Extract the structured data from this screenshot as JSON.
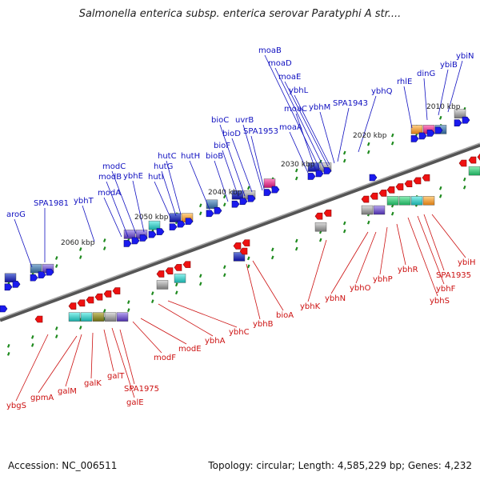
{
  "title": "Salmonella enterica subsp. enterica serovar Paratyphi A str....",
  "footer": {
    "accession": "Accession: NC_006511",
    "topology": "Topology: circular; Length: 4,585,229 bp; Genes: 4,232"
  },
  "colors": {
    "forward_label": "#1010c0",
    "reverse_label": "#cc1010",
    "forward_arrow": "#1a1aee",
    "reverse_arrow": "#ee1111",
    "backbone": "#777777",
    "tick_green": "#1e8a1e"
  },
  "axis": {
    "kbp_labels": [
      "2010 kbp",
      "2020 kbp",
      "2030 kbp",
      "2040 kbp",
      "2050 kbp",
      "2060 kbp"
    ]
  },
  "genes_forward": [
    "moaB",
    "moaD",
    "moaE",
    "ybhL",
    "moaC",
    "ybhM",
    "SPA1943",
    "ybhQ",
    "rhlE",
    "dinG",
    "ybiB",
    "ybiN",
    "bioC",
    "uvrB",
    "bioD",
    "SPA1953",
    "bioF",
    "moaA",
    "bioB",
    "hutH",
    "hutC",
    "hutG",
    "hutI",
    "modC",
    "ybhE",
    "modB",
    "modA",
    "ybhT",
    "SPA1981",
    "aroG"
  ],
  "genes_reverse": [
    "ybiH",
    "SPA1935",
    "ybhF",
    "ybhS",
    "ybhR",
    "ybhP",
    "ybhO",
    "ybhN",
    "ybhK",
    "bioA",
    "ybhB",
    "ybhC",
    "ybhA",
    "modE",
    "modF",
    "SPA1975",
    "galE",
    "galT",
    "galK",
    "galM",
    "gpmA",
    "ybgS"
  ]
}
